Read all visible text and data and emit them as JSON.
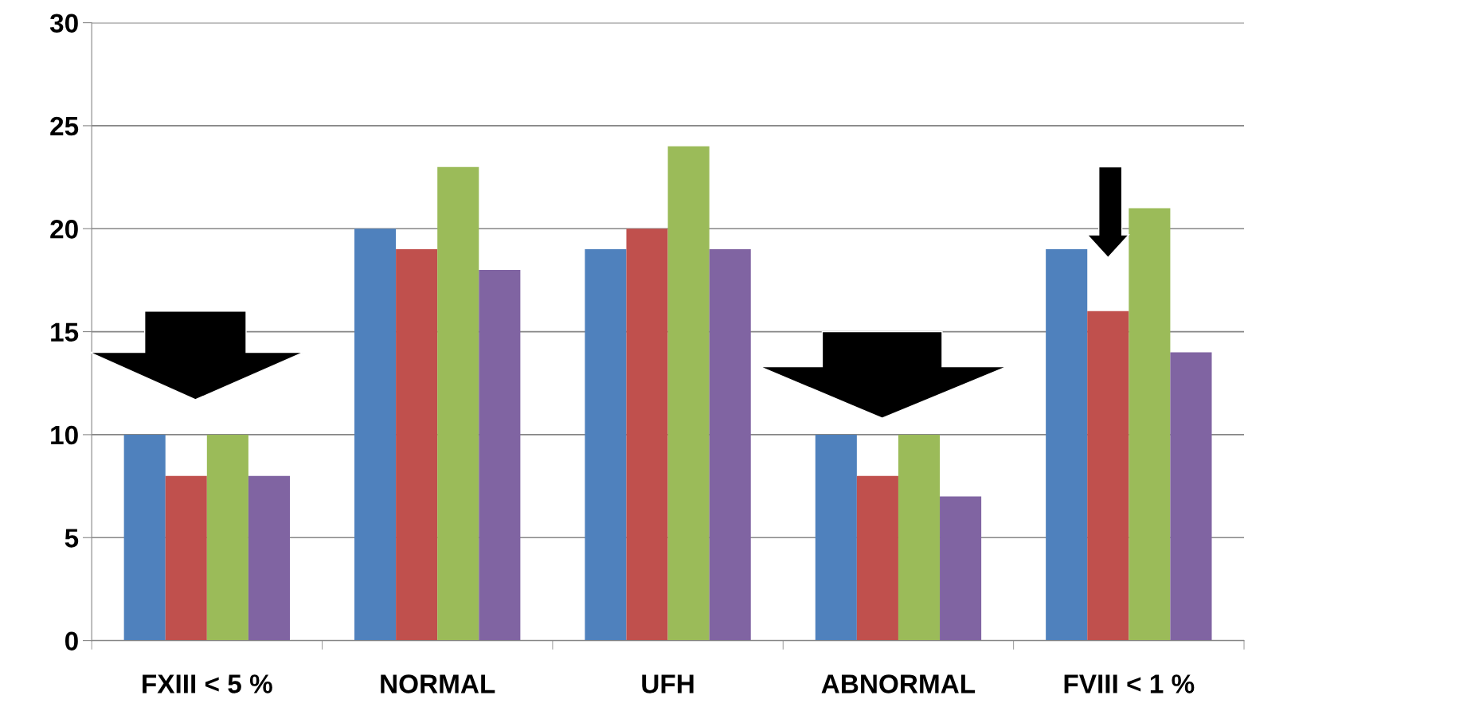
{
  "chart_data": {
    "type": "bar",
    "categories": [
      "FXIII < 5 %",
      "NORMAL",
      "UFH",
      "ABNORMAL",
      "FVIII < 1 %"
    ],
    "series": [
      {
        "color": "#4f81bd",
        "values": [
          10,
          20,
          19,
          10,
          19
        ]
      },
      {
        "color": "#c0504d",
        "values": [
          8,
          19,
          20,
          8,
          16
        ]
      },
      {
        "color": "#9bbb59",
        "values": [
          10,
          23,
          24,
          10,
          21
        ]
      },
      {
        "color": "#8064a2",
        "values": [
          8,
          18,
          19,
          7,
          14
        ]
      }
    ],
    "ylim": [
      0,
      30
    ],
    "yticks": [
      0,
      5,
      10,
      15,
      20,
      25,
      30
    ],
    "grid": "y"
  }
}
